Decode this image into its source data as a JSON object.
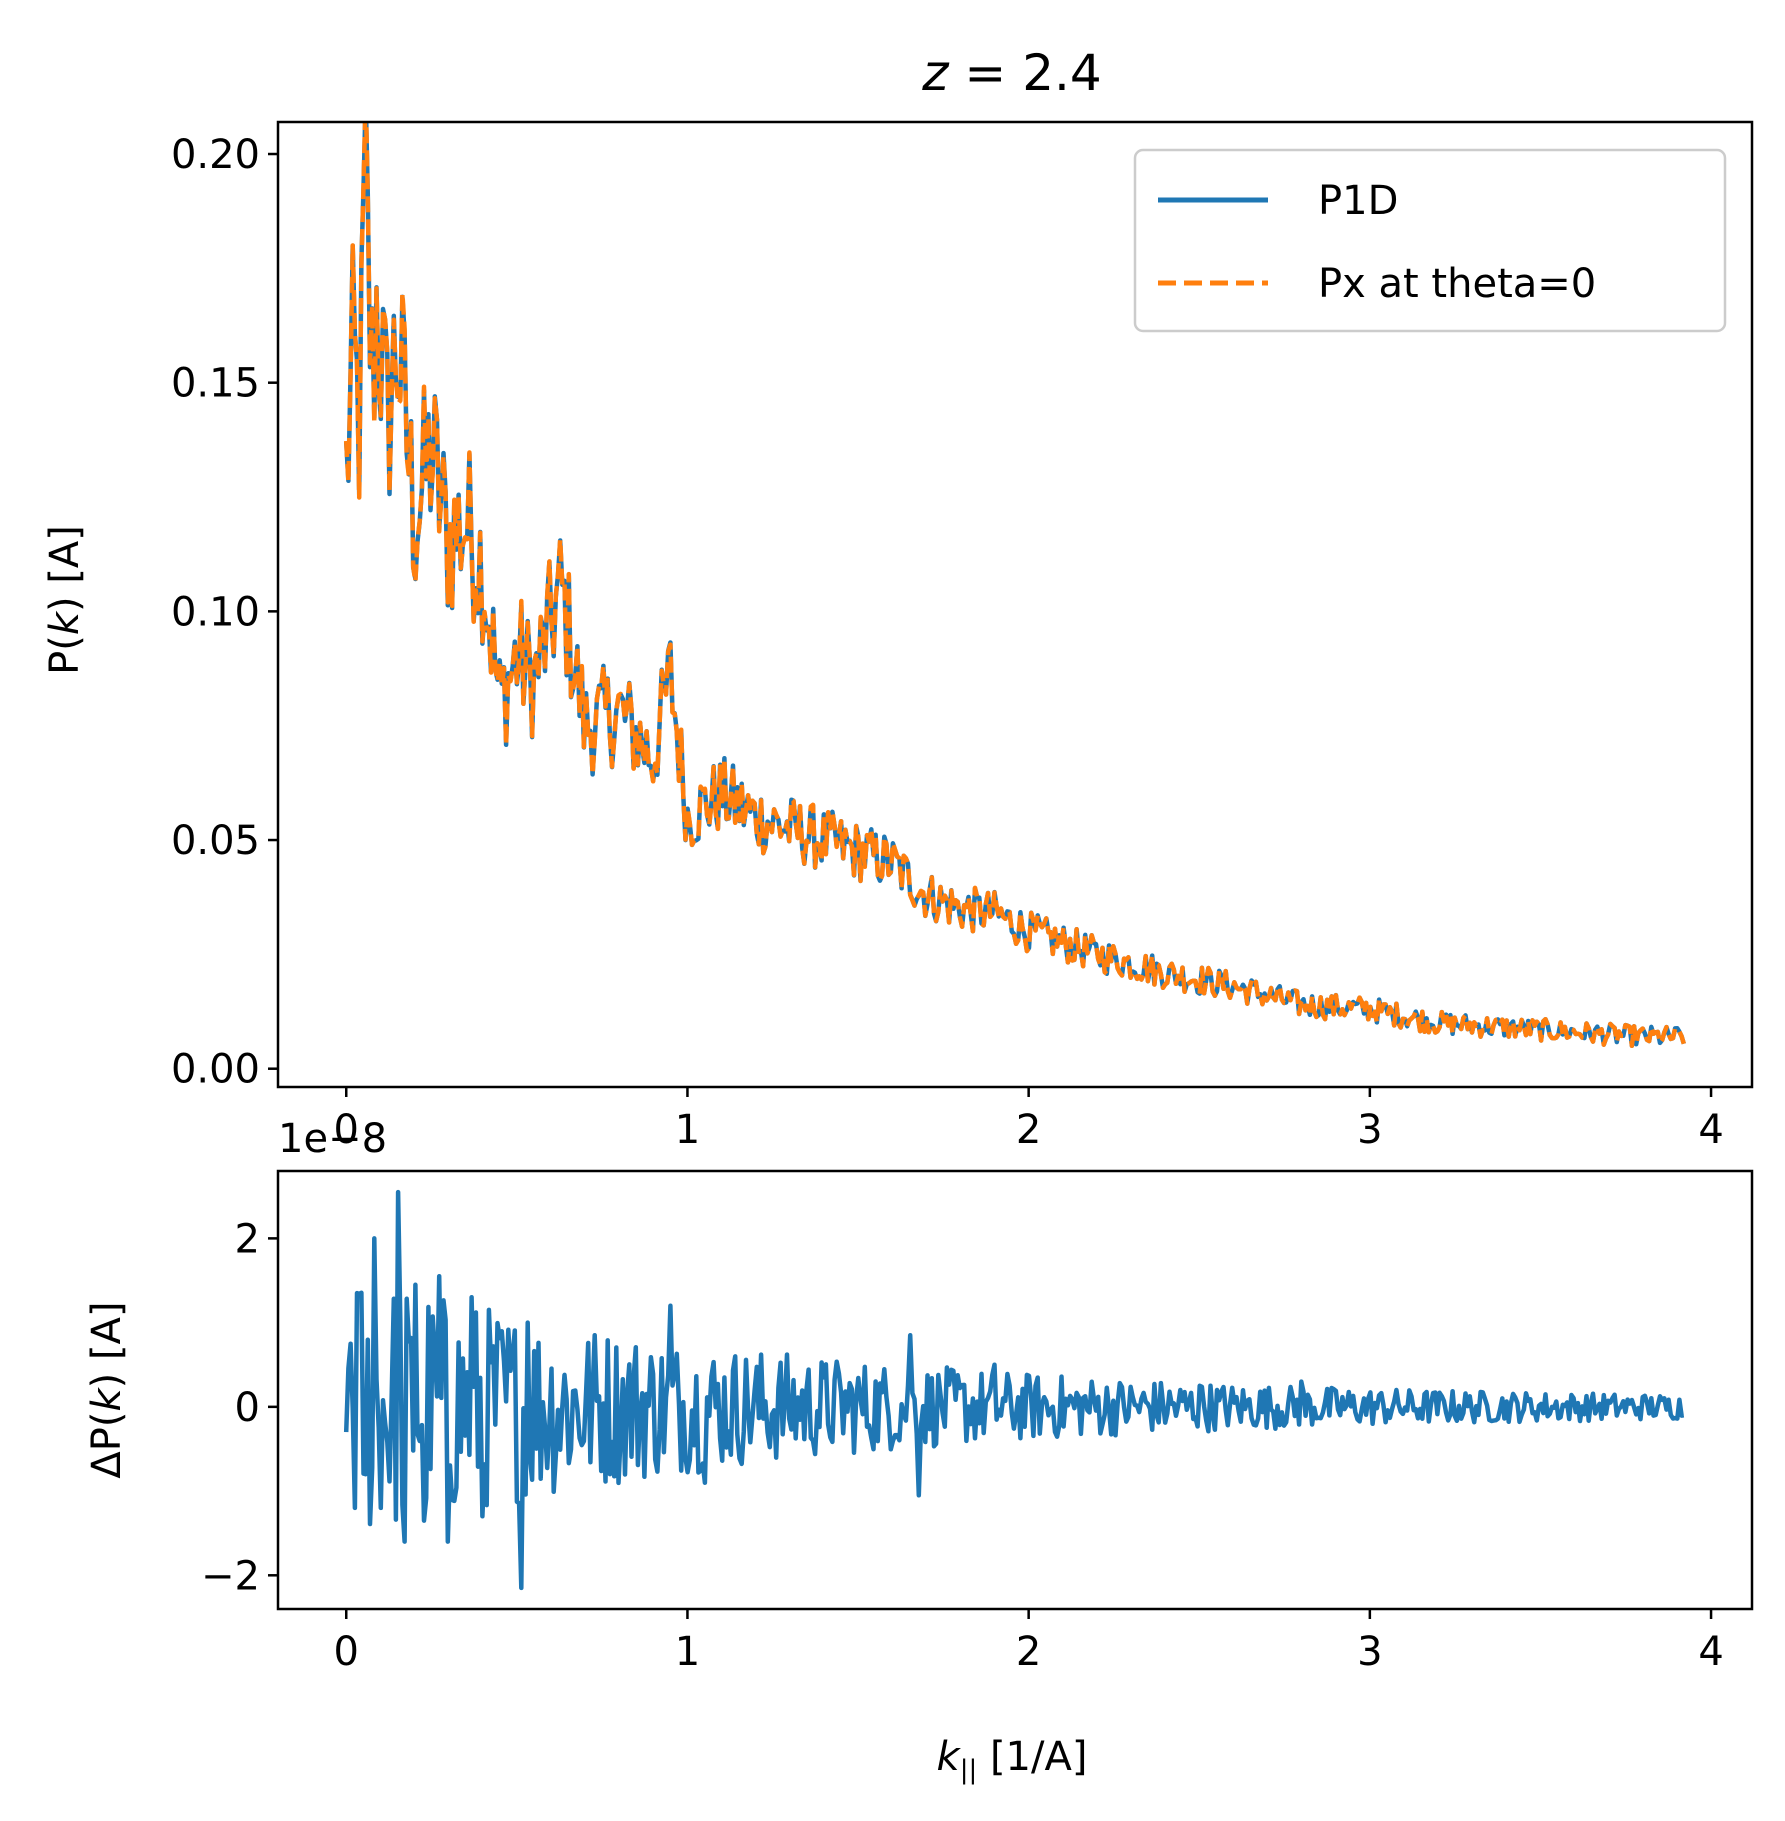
{
  "chart_data": [
    {
      "type": "line",
      "title": "z = 2.4",
      "title_parts": {
        "var": "z",
        "rest": " = 2.4"
      },
      "ylabel": "P(k) [A]",
      "ylabel_parts": {
        "pre": "P(",
        "var": "k",
        "post": ") [A]"
      },
      "xlabel": "",
      "xlim": [
        -0.2,
        4.12
      ],
      "ylim": [
        -0.004,
        0.207
      ],
      "x_ticks": [
        0,
        1,
        2,
        3,
        4
      ],
      "x_tick_labels": [
        "0",
        "1",
        "2",
        "3",
        "4"
      ],
      "y_ticks": [
        0.0,
        0.05,
        0.1,
        0.15,
        0.2
      ],
      "y_tick_labels": [
        "0.00",
        "0.05",
        "0.10",
        "0.15",
        "0.20"
      ],
      "grid": false,
      "legend_position": "upper right",
      "x_range": [
        0,
        3.92
      ],
      "num_points": 620,
      "decay_model": {
        "amplitude": 0.155,
        "scale": 1.55
      },
      "anchor_points": [
        [
          0.0,
          0.13
        ],
        [
          0.02,
          0.155
        ],
        [
          0.04,
          0.14
        ],
        [
          0.055,
          0.196
        ],
        [
          0.075,
          0.15
        ],
        [
          0.09,
          0.168
        ],
        [
          0.12,
          0.14
        ],
        [
          0.15,
          0.16
        ],
        [
          0.2,
          0.12
        ],
        [
          0.25,
          0.135
        ],
        [
          0.3,
          0.115
        ],
        [
          0.35,
          0.12
        ],
        [
          0.4,
          0.11
        ],
        [
          0.45,
          0.08
        ],
        [
          0.5,
          0.09
        ],
        [
          0.55,
          0.085
        ],
        [
          0.63,
          0.105
        ],
        [
          0.7,
          0.075
        ],
        [
          0.8,
          0.078
        ],
        [
          0.9,
          0.068
        ],
        [
          0.95,
          0.086
        ],
        [
          1.0,
          0.055
        ],
        [
          1.1,
          0.06
        ],
        [
          1.2,
          0.055
        ],
        [
          1.4,
          0.05
        ],
        [
          1.6,
          0.045
        ],
        [
          1.7,
          0.038
        ],
        [
          1.8,
          0.035
        ],
        [
          1.9,
          0.034
        ],
        [
          2.0,
          0.03
        ],
        [
          2.2,
          0.025
        ],
        [
          2.4,
          0.021
        ],
        [
          2.6,
          0.018
        ],
        [
          2.8,
          0.014
        ],
        [
          3.0,
          0.013
        ],
        [
          3.2,
          0.01
        ],
        [
          3.4,
          0.009
        ],
        [
          3.6,
          0.008
        ],
        [
          3.8,
          0.007
        ],
        [
          3.92,
          0.007
        ]
      ],
      "series": [
        {
          "name": "P1D",
          "color": "#1f77b4",
          "style": "solid"
        },
        {
          "name": "Px at theta=0",
          "color": "#ff7f0e",
          "style": "dashed"
        }
      ]
    },
    {
      "type": "line",
      "title": "",
      "ylabel": "ΔP(k) [A]",
      "ylabel_parts": {
        "pre": "ΔP(",
        "var": "k",
        "post": ") [A]"
      },
      "xlabel": "k|| [1/A]",
      "xlabel_parts": {
        "var": "k",
        "sub": "||",
        "post": " [1/A]"
      },
      "offset_text": "1e−8",
      "xlim": [
        -0.2,
        4.12
      ],
      "ylim": [
        -2.4,
        2.8
      ],
      "x_ticks": [
        0,
        1,
        2,
        3,
        4
      ],
      "x_tick_labels": [
        "0",
        "1",
        "2",
        "3",
        "4"
      ],
      "y_ticks": [
        -2,
        0,
        2
      ],
      "y_tick_labels": [
        "−2",
        "0",
        "2"
      ],
      "grid": false,
      "x_range": [
        0,
        3.92
      ],
      "num_points": 620,
      "envelope_model": {
        "amplitude": 1.6,
        "scale": 1.25
      },
      "notable_points": [
        [
          0.0,
          -0.3
        ],
        [
          0.01,
          0.75
        ],
        [
          0.03,
          1.35
        ],
        [
          0.06,
          -0.8
        ],
        [
          0.08,
          2.0
        ],
        [
          0.1,
          -1.2
        ],
        [
          0.15,
          2.55
        ],
        [
          0.17,
          -1.6
        ],
        [
          0.2,
          1.45
        ],
        [
          0.23,
          -1.35
        ],
        [
          0.27,
          1.55
        ],
        [
          0.3,
          -1.6
        ],
        [
          0.37,
          1.3
        ],
        [
          0.4,
          -1.3
        ],
        [
          0.51,
          -2.15
        ],
        [
          0.53,
          1.0
        ],
        [
          0.95,
          1.2
        ],
        [
          1.05,
          -0.9
        ],
        [
          1.65,
          0.85
        ],
        [
          1.68,
          -1.05
        ],
        [
          1.9,
          0.5
        ],
        [
          2.5,
          0.25
        ],
        [
          2.8,
          0.3
        ],
        [
          3.92,
          -0.1
        ]
      ],
      "series": [
        {
          "name": "",
          "color": "#1f77b4",
          "style": "solid"
        }
      ]
    }
  ]
}
